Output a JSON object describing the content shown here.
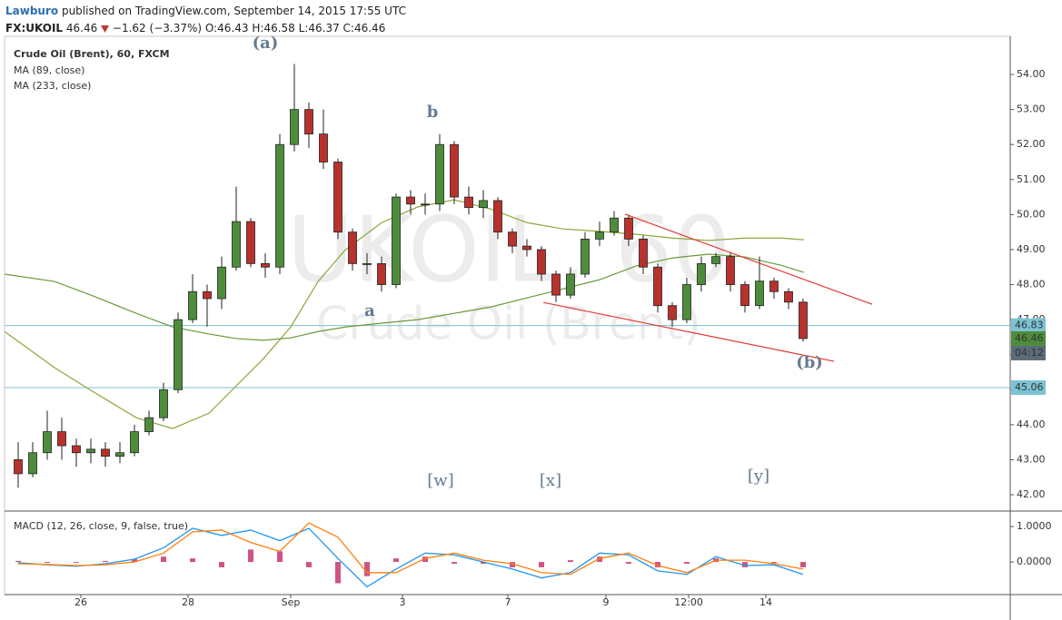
{
  "header": {
    "user": "Lawburo",
    "published": "published on TradingView.com, September 14, 2015 17:55 UTC"
  },
  "quote": {
    "symbol": "FX:UKOIL",
    "last": "46.46",
    "change": "−1.62 (−3.37%)",
    "ohlc": [
      {
        "key": "O:",
        "value": "46.43"
      },
      {
        "key": "H:",
        "value": "46.58"
      },
      {
        "key": "L:",
        "value": "46.37"
      },
      {
        "key": "C:",
        "value": "46.46"
      }
    ]
  },
  "chart_data": {
    "type": "candlestick",
    "title": "Crude Oil (Brent), 60, FXCM",
    "watermark": [
      "UKOIL, 60",
      "Crude Oil (Brent)"
    ],
    "up_color": "#4e8c3c",
    "down_color": "#b8322d",
    "open": [
      43.0,
      42.6,
      43.2,
      43.8,
      43.4,
      43.2,
      43.3,
      43.1,
      43.2,
      43.8,
      44.2,
      45.0,
      47.0,
      47.8,
      47.6,
      48.5,
      49.8,
      48.6,
      48.5,
      52.0,
      53.0,
      52.3,
      51.5,
      49.5,
      48.6,
      48.6,
      48.0,
      50.5,
      50.3,
      50.3,
      52.0,
      50.5,
      50.2,
      50.4,
      49.5,
      49.1,
      49.0,
      48.3,
      47.7,
      48.3,
      49.3,
      49.5,
      49.9,
      49.3,
      48.5,
      47.4,
      47.0,
      48.0,
      48.6,
      48.8,
      48.0,
      47.4,
      48.1,
      47.8,
      47.5
    ],
    "high": [
      43.5,
      43.5,
      44.4,
      44.2,
      43.6,
      43.6,
      43.5,
      43.5,
      44.0,
      44.4,
      45.2,
      47.2,
      48.3,
      48.0,
      48.8,
      50.8,
      49.9,
      48.9,
      52.3,
      54.3,
      53.2,
      53.0,
      51.6,
      49.6,
      48.9,
      48.8,
      50.6,
      50.7,
      50.6,
      52.3,
      52.1,
      50.8,
      50.7,
      50.5,
      49.6,
      49.3,
      49.1,
      48.4,
      48.5,
      49.5,
      49.8,
      50.1,
      50.0,
      49.4,
      48.6,
      47.5,
      48.2,
      48.8,
      48.9,
      48.9,
      48.1,
      48.8,
      48.2,
      47.9,
      47.6
    ],
    "low": [
      42.2,
      42.5,
      43.0,
      43.0,
      42.8,
      42.9,
      42.8,
      42.9,
      43.1,
      43.7,
      44.1,
      44.9,
      46.9,
      46.8,
      47.3,
      48.4,
      48.5,
      48.2,
      48.3,
      51.8,
      51.9,
      51.3,
      49.3,
      48.4,
      48.3,
      47.8,
      47.9,
      50.0,
      50.0,
      50.1,
      50.3,
      50.0,
      49.9,
      49.3,
      48.9,
      48.8,
      48.1,
      47.5,
      47.6,
      48.2,
      49.1,
      49.4,
      49.1,
      48.3,
      47.2,
      46.8,
      46.9,
      47.8,
      48.5,
      47.8,
      47.2,
      47.3,
      47.6,
      47.3,
      46.37
    ],
    "close": [
      42.6,
      43.2,
      43.8,
      43.4,
      43.2,
      43.3,
      43.1,
      43.2,
      43.8,
      44.2,
      45.0,
      47.0,
      47.8,
      47.6,
      48.5,
      49.8,
      48.6,
      48.5,
      52.0,
      53.0,
      52.3,
      51.5,
      49.5,
      48.6,
      48.6,
      48.0,
      50.5,
      50.3,
      50.3,
      52.0,
      50.5,
      50.2,
      50.4,
      49.5,
      49.1,
      49.0,
      48.3,
      47.7,
      48.3,
      49.3,
      49.5,
      49.9,
      49.3,
      48.5,
      47.4,
      47.0,
      48.0,
      48.6,
      48.8,
      48.0,
      47.4,
      48.1,
      47.8,
      47.5,
      46.46
    ],
    "xlim": [
      -0.9375,
      68.25
    ],
    "xticks": [
      {
        "value": 4.31,
        "label": "26"
      },
      {
        "value": 11.69,
        "label": "28"
      },
      {
        "value": 18.75,
        "label": "Sep"
      },
      {
        "value": 26.44,
        "label": "3"
      },
      {
        "value": 33.69,
        "label": "7"
      },
      {
        "value": 40.44,
        "label": "9"
      },
      {
        "value": 46.13,
        "label": "12:00"
      },
      {
        "value": 51.44,
        "label": "14"
      }
    ],
    "ylim": [
      41.56,
      55.09
    ],
    "yticks": [
      {
        "value": 42,
        "label": "42.00"
      },
      {
        "value": 43,
        "label": "43.00"
      },
      {
        "value": 44,
        "label": "44.00"
      },
      {
        "value": 45,
        "label": "45.00"
      },
      {
        "value": 46,
        "label": "46.00"
      },
      {
        "value": 47,
        "label": "47.00"
      },
      {
        "value": 48,
        "label": "48.00"
      },
      {
        "value": 49,
        "label": "49.00"
      },
      {
        "value": 50,
        "label": "50.00"
      },
      {
        "value": 51,
        "label": "51.00"
      },
      {
        "value": 52,
        "label": "52.00"
      },
      {
        "value": 53,
        "label": "53.00"
      },
      {
        "value": 54,
        "label": "54.00"
      }
    ],
    "moving_averages": {
      "x": [
        -0.94,
        2.5,
        5,
        8.13,
        10.63,
        13.13,
        15,
        16.88,
        18.75,
        20.63,
        22.5,
        25,
        27.5,
        30,
        32.5,
        35,
        37.5,
        40,
        42.5,
        45,
        47.5,
        50,
        52.5,
        54.06
      ],
      "series": [
        {
          "name": "MA (89, close)",
          "color": "#8aa83c",
          "values": [
            46.66,
            45.63,
            44.98,
            44.2,
            43.89,
            44.33,
            45.11,
            45.89,
            46.79,
            48.09,
            48.99,
            49.77,
            50.22,
            50.42,
            50.16,
            49.77,
            49.59,
            49.52,
            49.44,
            49.33,
            49.26,
            49.33,
            49.33,
            49.28
          ]
        },
        {
          "name": "MA (233, close)",
          "color": "#6a9a3a",
          "values": [
            48.3,
            48.09,
            47.7,
            47.18,
            46.79,
            46.59,
            46.46,
            46.41,
            46.48,
            46.66,
            46.79,
            46.9,
            47.0,
            47.18,
            47.36,
            47.62,
            47.88,
            48.14,
            48.53,
            48.76,
            48.87,
            48.79,
            48.55,
            48.35
          ]
        }
      ]
    },
    "trendlines": {
      "color": "#e53935",
      "lines": [
        {
          "x": [
            41.75,
            58.75
          ],
          "values": [
            50.01,
            47.44
          ]
        },
        {
          "x": [
            36.13,
            56.13
          ],
          "values": [
            47.49,
            45.81
          ]
        }
      ]
    },
    "hlines": [
      {
        "value": 46.83,
        "color": "#7cc3d4"
      },
      {
        "value": 45.06,
        "color": "#7cc3d4"
      }
    ],
    "last_price": {
      "value": 46.46,
      "color": "#4e8c3c",
      "countdown": "04:12"
    },
    "annotations": [
      "(a)",
      "b",
      "a",
      "(b)",
      "[w]",
      "[x]",
      "[y]"
    ],
    "macd": {
      "title": "MACD (12, 26, close, 9, false, true)",
      "x": [
        0,
        2,
        4,
        6,
        8,
        10,
        12,
        14,
        16,
        18,
        20,
        22,
        24,
        26,
        28,
        30,
        32,
        34,
        36,
        38,
        40,
        42,
        44,
        46,
        48,
        50,
        52,
        54
      ],
      "ylim": [
        -0.92,
        1.385
      ],
      "yticks": [
        {
          "value": 1,
          "label": "1.0000"
        },
        {
          "value": 0,
          "label": "0.0000"
        }
      ],
      "histogram": {
        "color": "#c2185b",
        "values": [
          0.03,
          -0.01,
          -0.02,
          0.03,
          0.08,
          0.15,
          0.1,
          -0.15,
          0.35,
          0.3,
          -0.15,
          -0.6,
          -0.4,
          0.1,
          0.15,
          -0.05,
          -0.05,
          -0.15,
          -0.15,
          0.05,
          0.15,
          -0.05,
          -0.15,
          -0.05,
          0.1,
          -0.15,
          -0.03,
          -0.15
        ]
      },
      "series": [
        {
          "color": "#2196f3",
          "values": [
            -0.02,
            -0.08,
            -0.12,
            -0.05,
            0.08,
            0.4,
            0.95,
            0.75,
            0.9,
            0.6,
            0.95,
            0.1,
            -0.7,
            -0.2,
            0.25,
            0.2,
            0.0,
            -0.2,
            -0.45,
            -0.3,
            0.25,
            0.2,
            -0.25,
            -0.35,
            0.15,
            -0.1,
            -0.08,
            -0.35
          ]
        },
        {
          "color": "#ff7f0e",
          "values": [
            -0.05,
            -0.07,
            -0.1,
            -0.08,
            0.0,
            0.25,
            0.85,
            0.9,
            0.55,
            0.3,
            1.1,
            0.7,
            -0.3,
            -0.3,
            0.1,
            0.25,
            0.05,
            -0.05,
            -0.3,
            -0.35,
            0.1,
            0.25,
            -0.1,
            -0.3,
            0.05,
            0.05,
            -0.05,
            -0.2
          ]
        }
      ]
    }
  }
}
